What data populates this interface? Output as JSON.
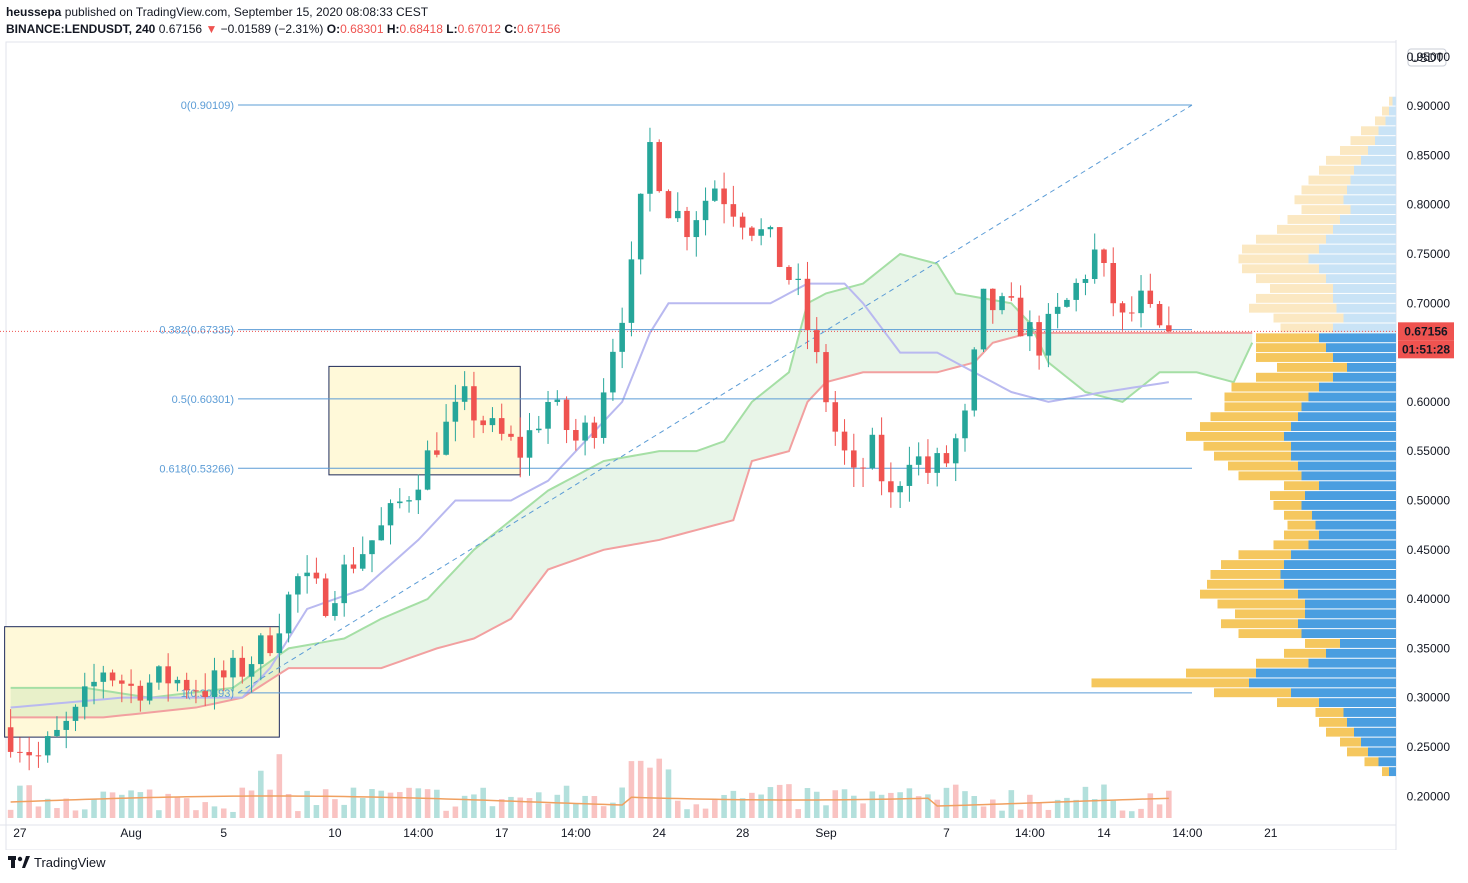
{
  "header": {
    "author": "heussepa",
    "published_text": "published on TradingView.com, September 15, 2020 08:08:33 CEST",
    "symbol": "BINANCE:LENDUSDT, 240",
    "last": "0.67156",
    "change": "−0.01589 (−2.31%)",
    "open_label": "O:",
    "open": "0.68301",
    "high_label": "H:",
    "high": "0.68418",
    "low_label": "L:",
    "low": "0.67012",
    "close_label": "C:",
    "close": "0.67156"
  },
  "footer": {
    "brand": "TradingView"
  },
  "colors": {
    "up": "#26a69a",
    "down": "#ef5350",
    "fib": "#5b9cd6",
    "box_fill": "#fff9d9",
    "box_border": "#1e2a5a",
    "kijun": "#b9b9f0",
    "span_a": "#a5dfa5",
    "span_b": "#f2a0a0",
    "vp_buy": "#4a9ee0",
    "vp_sell": "#f5c75e",
    "volume_ma": "#f0a060"
  },
  "chart_data": {
    "type": "candlestick",
    "currency": "USDT",
    "y_axis": {
      "min": 0.18,
      "max": 0.965,
      "ticks": [
        "0.95000",
        "0.90000",
        "0.85000",
        "0.80000",
        "0.75000",
        "0.70000",
        "0.65000",
        "0.60000",
        "0.55000",
        "0.50000",
        "0.45000",
        "0.40000",
        "0.35000",
        "0.30000",
        "0.25000",
        "0.20000"
      ]
    },
    "x_axis_labels": [
      "27",
      "Aug",
      "5",
      "10",
      "14:00",
      "17",
      "14:00",
      "24",
      "28",
      "Sep",
      "7",
      "14:00",
      "14",
      "14:00",
      "21"
    ],
    "last_price_tag": "0.67156",
    "countdown_tag": "01:51:28",
    "fib_levels": [
      {
        "label": "0(0.90109)",
        "value": 0.90109
      },
      {
        "label": "0.382(0.67335)",
        "value": 0.67335
      },
      {
        "label": "0.5(0.60301)",
        "value": 0.60301
      },
      {
        "label": "0.618(0.53266)",
        "value": 0.53266
      },
      {
        "label": "1(0.30493)",
        "value": 0.30493
      }
    ],
    "price_path": [
      [
        0,
        0.27
      ],
      [
        4,
        0.24
      ],
      [
        8,
        0.28
      ],
      [
        11,
        0.33
      ],
      [
        14,
        0.31
      ],
      [
        18,
        0.32
      ],
      [
        22,
        0.31
      ],
      [
        26,
        0.33
      ],
      [
        29,
        0.36
      ],
      [
        32,
        0.42
      ],
      [
        35,
        0.4
      ],
      [
        38,
        0.44
      ],
      [
        41,
        0.47
      ],
      [
        44,
        0.51
      ],
      [
        47,
        0.56
      ],
      [
        50,
        0.6
      ],
      [
        53,
        0.57
      ],
      [
        56,
        0.55
      ],
      [
        59,
        0.6
      ],
      [
        62,
        0.56
      ],
      [
        64,
        0.58
      ],
      [
        66,
        0.66
      ],
      [
        68,
        0.73
      ],
      [
        70,
        0.86
      ],
      [
        72,
        0.8
      ],
      [
        74,
        0.78
      ],
      [
        77,
        0.82
      ],
      [
        80,
        0.79
      ],
      [
        83,
        0.76
      ],
      [
        86,
        0.71
      ],
      [
        88,
        0.64
      ],
      [
        90,
        0.57
      ],
      [
        92,
        0.52
      ],
      [
        94,
        0.55
      ],
      [
        96,
        0.5
      ],
      [
        98,
        0.55
      ],
      [
        100,
        0.53
      ],
      [
        102,
        0.54
      ],
      [
        104,
        0.58
      ],
      [
        106,
        0.7
      ],
      [
        109,
        0.69
      ],
      [
        112,
        0.66
      ],
      [
        115,
        0.7
      ],
      [
        118,
        0.75
      ],
      [
        121,
        0.68
      ],
      [
        123,
        0.7
      ],
      [
        125,
        0.67
      ]
    ],
    "kijun_path": [
      [
        0,
        0.29
      ],
      [
        12,
        0.3
      ],
      [
        25,
        0.3
      ],
      [
        28,
        0.33
      ],
      [
        32,
        0.39
      ],
      [
        38,
        0.41
      ],
      [
        44,
        0.46
      ],
      [
        48,
        0.5
      ],
      [
        54,
        0.5
      ],
      [
        58,
        0.52
      ],
      [
        62,
        0.56
      ],
      [
        66,
        0.6
      ],
      [
        69,
        0.67
      ],
      [
        71,
        0.7
      ],
      [
        82,
        0.7
      ],
      [
        86,
        0.72
      ],
      [
        90,
        0.72
      ],
      [
        92,
        0.7
      ],
      [
        96,
        0.65
      ],
      [
        100,
        0.65
      ],
      [
        104,
        0.63
      ],
      [
        108,
        0.61
      ],
      [
        112,
        0.6
      ],
      [
        118,
        0.61
      ],
      [
        125,
        0.62
      ]
    ],
    "span_a_path": [
      [
        0,
        0.31
      ],
      [
        8,
        0.31
      ],
      [
        15,
        0.3
      ],
      [
        24,
        0.31
      ],
      [
        30,
        0.35
      ],
      [
        36,
        0.36
      ],
      [
        40,
        0.38
      ],
      [
        45,
        0.4
      ],
      [
        50,
        0.45
      ],
      [
        54,
        0.48
      ],
      [
        58,
        0.51
      ],
      [
        64,
        0.54
      ],
      [
        70,
        0.55
      ],
      [
        74,
        0.55
      ],
      [
        77,
        0.56
      ],
      [
        80,
        0.6
      ],
      [
        84,
        0.63
      ],
      [
        86,
        0.7
      ],
      [
        88,
        0.71
      ],
      [
        92,
        0.72
      ],
      [
        96,
        0.75
      ],
      [
        100,
        0.74
      ],
      [
        102,
        0.71
      ],
      [
        108,
        0.7
      ],
      [
        110,
        0.68
      ],
      [
        112,
        0.64
      ],
      [
        116,
        0.61
      ],
      [
        120,
        0.6
      ],
      [
        124,
        0.63
      ],
      [
        128,
        0.63
      ],
      [
        132,
        0.62
      ],
      [
        134,
        0.66
      ]
    ],
    "span_b_path": [
      [
        0,
        0.28
      ],
      [
        10,
        0.28
      ],
      [
        20,
        0.29
      ],
      [
        25,
        0.3
      ],
      [
        30,
        0.33
      ],
      [
        40,
        0.33
      ],
      [
        46,
        0.35
      ],
      [
        50,
        0.36
      ],
      [
        54,
        0.38
      ],
      [
        58,
        0.43
      ],
      [
        64,
        0.45
      ],
      [
        70,
        0.46
      ],
      [
        74,
        0.47
      ],
      [
        78,
        0.48
      ],
      [
        80,
        0.54
      ],
      [
        84,
        0.55
      ],
      [
        86,
        0.6
      ],
      [
        88,
        0.62
      ],
      [
        92,
        0.63
      ],
      [
        100,
        0.63
      ],
      [
        104,
        0.64
      ],
      [
        106,
        0.66
      ],
      [
        110,
        0.67
      ],
      [
        116,
        0.67
      ],
      [
        122,
        0.67
      ],
      [
        128,
        0.67
      ],
      [
        134,
        0.67
      ]
    ],
    "boxes": [
      {
        "x0": 0,
        "x1": 29,
        "y0": 0.26,
        "y1": 0.372
      },
      {
        "x0": 35,
        "x1": 55,
        "y0": 0.526,
        "y1": 0.636
      }
    ],
    "fib_trend": {
      "x0": 18,
      "y0": 0.30493,
      "x1": 88,
      "y1": 0.90109
    },
    "volume_profile_rows": [
      [
        0.905,
        0.01,
        0.01
      ],
      [
        0.895,
        0.02,
        0.02
      ],
      [
        0.885,
        0.03,
        0.03
      ],
      [
        0.875,
        0.05,
        0.05
      ],
      [
        0.865,
        0.06,
        0.07
      ],
      [
        0.855,
        0.08,
        0.08
      ],
      [
        0.845,
        0.1,
        0.1
      ],
      [
        0.835,
        0.12,
        0.1
      ],
      [
        0.825,
        0.13,
        0.12
      ],
      [
        0.815,
        0.14,
        0.13
      ],
      [
        0.805,
        0.15,
        0.14
      ],
      [
        0.795,
        0.13,
        0.14
      ],
      [
        0.785,
        0.16,
        0.15
      ],
      [
        0.775,
        0.18,
        0.16
      ],
      [
        0.765,
        0.2,
        0.2
      ],
      [
        0.755,
        0.22,
        0.22
      ],
      [
        0.745,
        0.25,
        0.2
      ],
      [
        0.735,
        0.22,
        0.22
      ],
      [
        0.725,
        0.2,
        0.2
      ],
      [
        0.715,
        0.18,
        0.18
      ],
      [
        0.705,
        0.18,
        0.22
      ],
      [
        0.695,
        0.17,
        0.25
      ],
      [
        0.685,
        0.15,
        0.2
      ],
      [
        0.675,
        0.18,
        0.15
      ],
      [
        0.665,
        0.22,
        0.18
      ],
      [
        0.655,
        0.2,
        0.2
      ],
      [
        0.645,
        0.18,
        0.22
      ],
      [
        0.635,
        0.14,
        0.2
      ],
      [
        0.625,
        0.18,
        0.22
      ],
      [
        0.615,
        0.22,
        0.25
      ],
      [
        0.605,
        0.25,
        0.24
      ],
      [
        0.595,
        0.27,
        0.22
      ],
      [
        0.585,
        0.28,
        0.25
      ],
      [
        0.575,
        0.3,
        0.26
      ],
      [
        0.565,
        0.32,
        0.28
      ],
      [
        0.555,
        0.3,
        0.25
      ],
      [
        0.545,
        0.3,
        0.22
      ],
      [
        0.535,
        0.28,
        0.2
      ],
      [
        0.525,
        0.27,
        0.18
      ],
      [
        0.515,
        0.22,
        0.1
      ],
      [
        0.505,
        0.26,
        0.1
      ],
      [
        0.495,
        0.27,
        0.08
      ],
      [
        0.485,
        0.24,
        0.08
      ],
      [
        0.475,
        0.23,
        0.08
      ],
      [
        0.465,
        0.22,
        0.1
      ],
      [
        0.455,
        0.25,
        0.1
      ],
      [
        0.445,
        0.3,
        0.15
      ],
      [
        0.435,
        0.32,
        0.18
      ],
      [
        0.425,
        0.33,
        0.2
      ],
      [
        0.415,
        0.32,
        0.22
      ],
      [
        0.405,
        0.28,
        0.28
      ],
      [
        0.395,
        0.26,
        0.25
      ],
      [
        0.385,
        0.26,
        0.2
      ],
      [
        0.375,
        0.28,
        0.22
      ],
      [
        0.365,
        0.27,
        0.18
      ],
      [
        0.355,
        0.16,
        0.1
      ],
      [
        0.345,
        0.2,
        0.12
      ],
      [
        0.335,
        0.25,
        0.15
      ],
      [
        0.325,
        0.4,
        0.2
      ],
      [
        0.315,
        0.42,
        0.45
      ],
      [
        0.305,
        0.3,
        0.22
      ],
      [
        0.295,
        0.22,
        0.12
      ],
      [
        0.285,
        0.15,
        0.08
      ],
      [
        0.275,
        0.14,
        0.08
      ],
      [
        0.265,
        0.12,
        0.08
      ],
      [
        0.255,
        0.1,
        0.06
      ],
      [
        0.245,
        0.08,
        0.06
      ],
      [
        0.235,
        0.05,
        0.04
      ],
      [
        0.225,
        0.02,
        0.02
      ]
    ]
  }
}
